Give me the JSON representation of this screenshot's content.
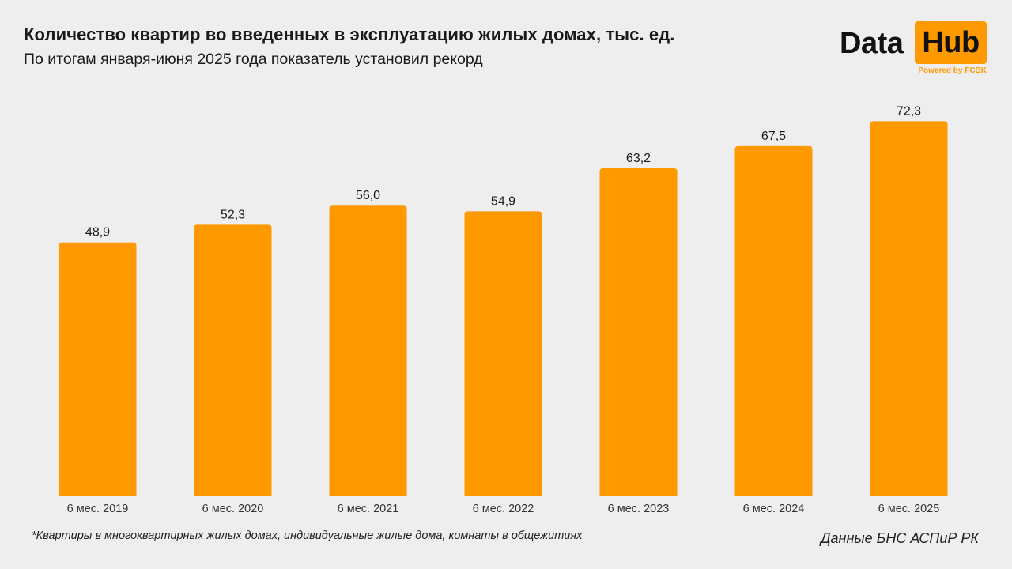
{
  "header": {
    "title": "Количество квартир во введенных в эксплуатацию жилых домах, тыс. ед.",
    "subtitle": "По итогам января-июня 2025 года показатель установил рекорд"
  },
  "logo": {
    "word1": "Data",
    "word2": "Hub",
    "tagline": "Powered by FCBK"
  },
  "colors": {
    "bar": "#ff9900",
    "axis": "#999999",
    "text": "#1a1a1a",
    "background": "#eeeeee"
  },
  "chart_data": {
    "type": "bar",
    "categories": [
      "6 мес. 2019",
      "6 мес. 2020",
      "6 мес. 2021",
      "6 мес. 2022",
      "6 мес. 2023",
      "6 мес. 2024",
      "6 мес. 2025"
    ],
    "values": [
      48.9,
      52.3,
      56.0,
      54.9,
      63.2,
      67.5,
      72.3
    ],
    "value_labels": [
      "48,9",
      "52,3",
      "56,0",
      "54,9",
      "63,2",
      "67,5",
      "72,3"
    ],
    "title": "Количество квартир во введенных в эксплуатацию жилых домах, тыс. ед.",
    "xlabel": "",
    "ylabel": "",
    "ylim": [
      0,
      80
    ],
    "grid": false,
    "legend": "none"
  },
  "footer": {
    "note": "*Квартиры в многоквартирных жилых домах, индивидуальные жилые дома, комнаты в общежитиях",
    "source": "Данные БНС АСПиР РК"
  }
}
